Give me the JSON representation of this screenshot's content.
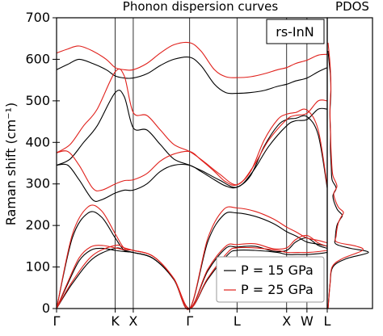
{
  "chart_data": {
    "type": "line",
    "title": "Phonon dispersion curves",
    "side_title": "PDOS",
    "ylabel": "Raman shift (cm⁻¹)",
    "ylim": [
      0,
      700
    ],
    "yticks": [
      0,
      100,
      200,
      300,
      400,
      500,
      600,
      700
    ],
    "xlim": [
      0,
      12
    ],
    "kpoints": [
      {
        "label": "Γ",
        "x": 0
      },
      {
        "label": "K",
        "x": 2.6
      },
      {
        "label": "X",
        "x": 3.4
      },
      {
        "label": "Γ",
        "x": 5.9
      },
      {
        "label": "L",
        "x": 8.0
      },
      {
        "label": "X",
        "x": 10.2
      },
      {
        "label": "W",
        "x": 11.1
      },
      {
        "label": "L",
        "x": 12.0
      }
    ],
    "annotation": "rs-InN",
    "legend_position": "bottom-right",
    "grid": false,
    "series": [
      {
        "name": "P = 15 GPa",
        "color": "#000000",
        "branches": [
          {
            "x": [
              0,
              0.7,
              1.6,
              2.6,
              3.0,
              3.4,
              4.3,
              5.2,
              5.9,
              6.7,
              7.6,
              8.0,
              8.8,
              9.8,
              10.2,
              10.7,
              11.1,
              11.6,
              12.0
            ],
            "y": [
              0,
              60,
              120,
              145,
              140,
              135,
              120,
              70,
              0,
              70,
              130,
              140,
              140,
              135,
              130,
              130,
              130,
              132,
              135
            ]
          },
          {
            "x": [
              0,
              0.5,
              1.0,
              1.5,
              2.0,
              2.6,
              3.0,
              3.4,
              4.3,
              5.2,
              5.9,
              6.7,
              7.5,
              8.0,
              8.8,
              9.6,
              10.2,
              10.6,
              11.1,
              11.6,
              12.0
            ],
            "y": [
              0,
              60,
              115,
              140,
              145,
              140,
              137,
              135,
              120,
              70,
              0,
              90,
              145,
              148,
              150,
              138,
              140,
              160,
              170,
              152,
              145
            ]
          },
          {
            "x": [
              0,
              0.7,
              1.4,
              2.0,
              2.6,
              3.0,
              3.4,
              4.3,
              5.2,
              5.9,
              6.7,
              7.4,
              8.0,
              8.8,
              9.6,
              10.2,
              10.6,
              11.1,
              11.6,
              12.0
            ],
            "y": [
              0,
              170,
              230,
              220,
              170,
              140,
              135,
              120,
              70,
              0,
              160,
              225,
              230,
              222,
              205,
              185,
              175,
              160,
              155,
              150
            ]
          },
          {
            "x": [
              0,
              0.5,
              1.0,
              1.6,
              2.0,
              2.6,
              3.0,
              3.4,
              4.0,
              4.6,
              5.2,
              5.9,
              6.4,
              7.0,
              7.5,
              8.0,
              8.6,
              9.2,
              9.8,
              10.2,
              10.6,
              11.1,
              11.6,
              12.0
            ],
            "y": [
              345,
              345,
              310,
              262,
              262,
              278,
              285,
              285,
              300,
              330,
              345,
              345,
              330,
              310,
              295,
              292,
              320,
              390,
              440,
              455,
              458,
              462,
              418,
              290
            ]
          },
          {
            "x": [
              0,
              0.6,
              1.2,
              1.8,
              2.6,
              3.0,
              3.4,
              4.0,
              4.6,
              5.2,
              5.9,
              6.5,
              7.2,
              8.0,
              8.7,
              9.4,
              10.2,
              10.6,
              11.1,
              11.6,
              12.0
            ],
            "y": [
              345,
              360,
              400,
              440,
              520,
              510,
              435,
              430,
              395,
              360,
              345,
              330,
              310,
              292,
              330,
              390,
              440,
              452,
              455,
              480,
              480
            ]
          },
          {
            "x": [
              0,
              0.5,
              1.0,
              1.6,
              2.2,
              2.6,
              3.0,
              3.4,
              4.0,
              4.6,
              5.2,
              5.9,
              6.4,
              7.0,
              7.5,
              8.0,
              8.6,
              9.2,
              9.8,
              10.2,
              10.6,
              11.1,
              11.6,
              12.0
            ],
            "y": [
              575,
              588,
              600,
              590,
              575,
              560,
              555,
              555,
              565,
              585,
              600,
              605,
              585,
              540,
              520,
              518,
              520,
              525,
              535,
              540,
              548,
              555,
              570,
              580
            ]
          }
        ]
      },
      {
        "name": "P = 25 GPa",
        "color": "#e0201b",
        "branches": [
          {
            "x": [
              0,
              0.7,
              1.6,
              2.6,
              3.0,
              3.4,
              4.3,
              5.2,
              5.9,
              6.7,
              7.6,
              8.0,
              8.8,
              9.8,
              10.2,
              10.7,
              11.1,
              11.6,
              12.0
            ],
            "y": [
              0,
              65,
              128,
              152,
              146,
              140,
              125,
              72,
              0,
              73,
              136,
              146,
              146,
              140,
              135,
              135,
              135,
              137,
              140
            ]
          },
          {
            "x": [
              0,
              0.5,
              1.0,
              1.5,
              2.0,
              2.6,
              3.0,
              3.4,
              4.3,
              5.2,
              5.9,
              6.7,
              7.5,
              8.0,
              8.8,
              9.6,
              10.2,
              10.6,
              11.1,
              11.6,
              12.0
            ],
            "y": [
              0,
              64,
              122,
              148,
              152,
              146,
              142,
              140,
              125,
              72,
              0,
              94,
              150,
              154,
              156,
              144,
              146,
              166,
              176,
              158,
              150
            ]
          },
          {
            "x": [
              0,
              0.7,
              1.4,
              2.0,
              2.6,
              3.0,
              3.4,
              4.3,
              5.2,
              5.9,
              6.7,
              7.4,
              8.0,
              8.8,
              9.6,
              10.2,
              10.6,
              11.1,
              11.6,
              12.0
            ],
            "y": [
              0,
              178,
              245,
              235,
              180,
              145,
              140,
              125,
              72,
              0,
              168,
              238,
              242,
              234,
              216,
              196,
              185,
              170,
              164,
              158
            ]
          },
          {
            "x": [
              0,
              0.5,
              1.0,
              1.6,
              2.0,
              2.6,
              3.0,
              3.4,
              4.0,
              4.6,
              5.2,
              5.9,
              6.4,
              7.0,
              7.5,
              8.0,
              8.6,
              9.2,
              9.8,
              10.2,
              10.6,
              11.1,
              11.6,
              12.0
            ],
            "y": [
              375,
              378,
              345,
              290,
              285,
              300,
              308,
              310,
              325,
              355,
              372,
              378,
              358,
              330,
              305,
              298,
              330,
              405,
              455,
              468,
              472,
              478,
              430,
              295
            ]
          },
          {
            "x": [
              0,
              0.6,
              1.2,
              1.8,
              2.6,
              3.0,
              3.4,
              4.0,
              4.6,
              5.2,
              5.9,
              6.5,
              7.2,
              8.0,
              8.7,
              9.4,
              10.2,
              10.6,
              11.1,
              11.6,
              12.0
            ],
            "y": [
              375,
              395,
              440,
              480,
              570,
              560,
              472,
              465,
              430,
              395,
              378,
              355,
              325,
              298,
              340,
              405,
              455,
              465,
              470,
              500,
              500
            ]
          },
          {
            "x": [
              0,
              0.5,
              1.0,
              1.6,
              2.2,
              2.6,
              3.0,
              3.4,
              4.0,
              4.6,
              5.2,
              5.9,
              6.4,
              7.0,
              7.5,
              8.0,
              8.6,
              9.2,
              9.8,
              10.2,
              10.6,
              11.1,
              11.6,
              12.0
            ],
            "y": [
              615,
              625,
              632,
              620,
              600,
              580,
              575,
              575,
              590,
              615,
              635,
              640,
              620,
              575,
              558,
              556,
              558,
              565,
              575,
              580,
              590,
              598,
              610,
              612
            ]
          }
        ]
      }
    ],
    "pdos": {
      "xlabel": "",
      "series": [
        {
          "name": "P = 15 GPa",
          "color": "#000000",
          "y": [
            0,
            60,
            100,
            120,
            135,
            145,
            155,
            170,
            200,
            215,
            225,
            240,
            270,
            290,
            310,
            340,
            380,
            420,
            450,
            480,
            520,
            560,
            580,
            600,
            620
          ],
          "density": [
            0,
            0.05,
            0.12,
            0.45,
            1.0,
            0.55,
            0.2,
            0.18,
            0.22,
            0.3,
            0.35,
            0.22,
            0.12,
            0.2,
            0.1,
            0.08,
            0.06,
            0.06,
            0.05,
            0.05,
            0.07,
            0.06,
            0.04,
            0.02,
            0
          ]
        },
        {
          "name": "P = 25 GPa",
          "color": "#e0201b",
          "y": [
            0,
            60,
            100,
            120,
            140,
            150,
            160,
            175,
            205,
            220,
            232,
            245,
            275,
            295,
            320,
            350,
            390,
            430,
            460,
            490,
            530,
            570,
            600,
            620,
            640
          ],
          "density": [
            0,
            0.05,
            0.1,
            0.35,
            0.85,
            0.7,
            0.22,
            0.2,
            0.25,
            0.32,
            0.38,
            0.25,
            0.14,
            0.22,
            0.12,
            0.09,
            0.07,
            0.06,
            0.05,
            0.05,
            0.07,
            0.06,
            0.04,
            0.02,
            0
          ]
        }
      ]
    }
  }
}
